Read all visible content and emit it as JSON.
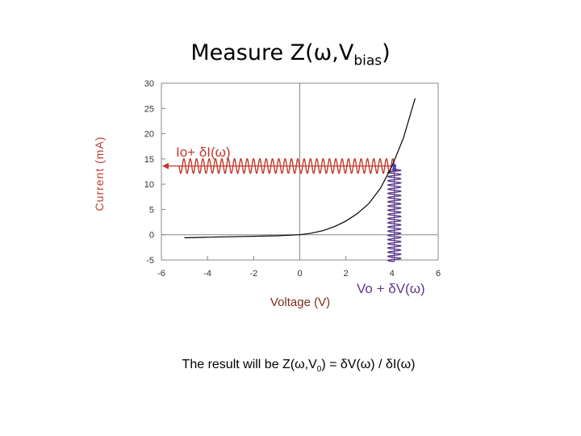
{
  "title": {
    "main": "Measure Z(ω,V",
    "sub": "bias",
    "close": ")"
  },
  "result": {
    "part1": "The result will be Z(ω,V",
    "sub": "0",
    "part2": ") = δV(ω) / δI(ω)"
  },
  "chart_data": {
    "type": "line",
    "xlabel": "Voltage (V)",
    "ylabel": "Current (mA)",
    "xlim": [
      -6,
      6
    ],
    "ylim": [
      -5,
      30
    ],
    "x_ticks": [
      -6,
      -4,
      -2,
      0,
      2,
      4,
      6
    ],
    "y_ticks": [
      -5,
      0,
      5,
      10,
      15,
      20,
      25,
      30
    ],
    "grid": false,
    "series": [
      {
        "x": [
          -5,
          -4,
          -3,
          -2,
          -1,
          0,
          0.5,
          1,
          1.5,
          2,
          2.5,
          3,
          3.5,
          4,
          4.5,
          5
        ],
        "y": [
          -0.6,
          -0.5,
          -0.4,
          -0.3,
          -0.2,
          0,
          0.3,
          0.8,
          1.6,
          2.7,
          4.2,
          6.2,
          9.2,
          13.6,
          19.2,
          27
        ]
      }
    ],
    "bias_point": {
      "x": 4.1,
      "y": 13.6
    },
    "annotations": [
      {
        "text": "Io+ δI(ω)",
        "color": "#c0392b"
      },
      {
        "text": "Vo + δV(ω)",
        "color": "#5b3a8a"
      }
    ],
    "colors": {
      "current_wave": "#c0392b",
      "voltage_wave": "#5b3a8a",
      "axes": "#888888",
      "curve": "#000000"
    }
  }
}
